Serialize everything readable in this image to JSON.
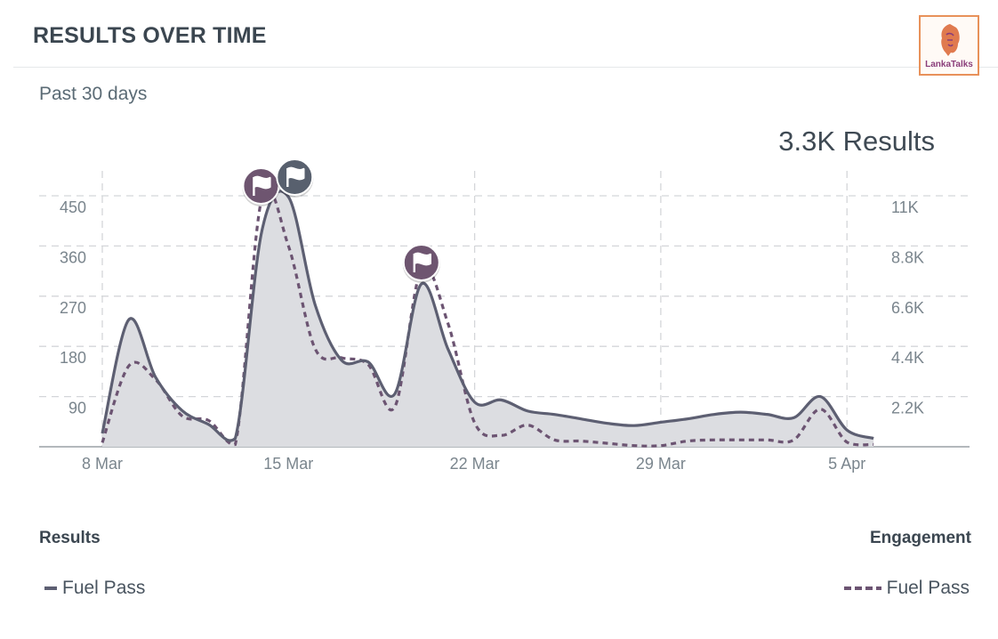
{
  "header": {
    "title": "RESULTS OVER TIME",
    "logo_text": "LankaTalks"
  },
  "summary": {
    "range": "Past 30 days",
    "total": "3.3K Results"
  },
  "colors": {
    "results": "#5d5f72",
    "engagement": "#6c5472",
    "fill": "#dcdde1",
    "grid": "#d4d6d9",
    "flag_a": "#6e5570",
    "flag_b": "#58606e"
  },
  "legend": {
    "left_title": "Results",
    "right_title": "Engagement",
    "left_item": "Fuel Pass",
    "right_item": "Fuel Pass"
  },
  "chart_data": {
    "type": "area",
    "x": [
      "8 Mar",
      "9 Mar",
      "10 Mar",
      "11 Mar",
      "12 Mar",
      "13 Mar",
      "14 Mar",
      "15 Mar",
      "16 Mar",
      "17 Mar",
      "18 Mar",
      "19 Mar",
      "20 Mar",
      "21 Mar",
      "22 Mar",
      "23 Mar",
      "24 Mar",
      "25 Mar",
      "26 Mar",
      "27 Mar",
      "28 Mar",
      "29 Mar",
      "30 Mar",
      "31 Mar",
      "1 Apr",
      "2 Apr",
      "3 Apr",
      "4 Apr",
      "5 Apr",
      "6 Apr"
    ],
    "xticks": [
      "8 Mar",
      "15 Mar",
      "22 Mar",
      "29 Mar",
      "5 Apr"
    ],
    "yticks_left": [
      "90",
      "180",
      "270",
      "360",
      "450"
    ],
    "yticks_right": [
      "2.2K",
      "4.4K",
      "6.6K",
      "8.8K",
      "11K"
    ],
    "ylim_left": [
      0,
      450
    ],
    "ylim_right": [
      0,
      11000
    ],
    "series": [
      {
        "name": "Fuel Pass",
        "axis": "left",
        "style": "solid-area",
        "values": [
          24,
          228,
          125,
          65,
          40,
          15,
          387,
          448,
          255,
          155,
          152,
          95,
          292,
          175,
          80,
          84,
          64,
          58,
          50,
          42,
          38,
          44,
          50,
          58,
          62,
          58,
          52,
          90,
          30,
          15
        ]
      },
      {
        "name": "Fuel Pass",
        "axis": "right",
        "style": "dashed",
        "values": [
          180,
          3550,
          2950,
          1350,
          1150,
          100,
          10900,
          8800,
          4300,
          3900,
          3600,
          1750,
          7800,
          5400,
          1050,
          500,
          950,
          300,
          250,
          150,
          50,
          50,
          250,
          300,
          300,
          300,
          300,
          1650,
          200,
          100
        ]
      }
    ],
    "annotations": [
      "flag",
      "flag",
      "flag"
    ],
    "grid": true
  }
}
